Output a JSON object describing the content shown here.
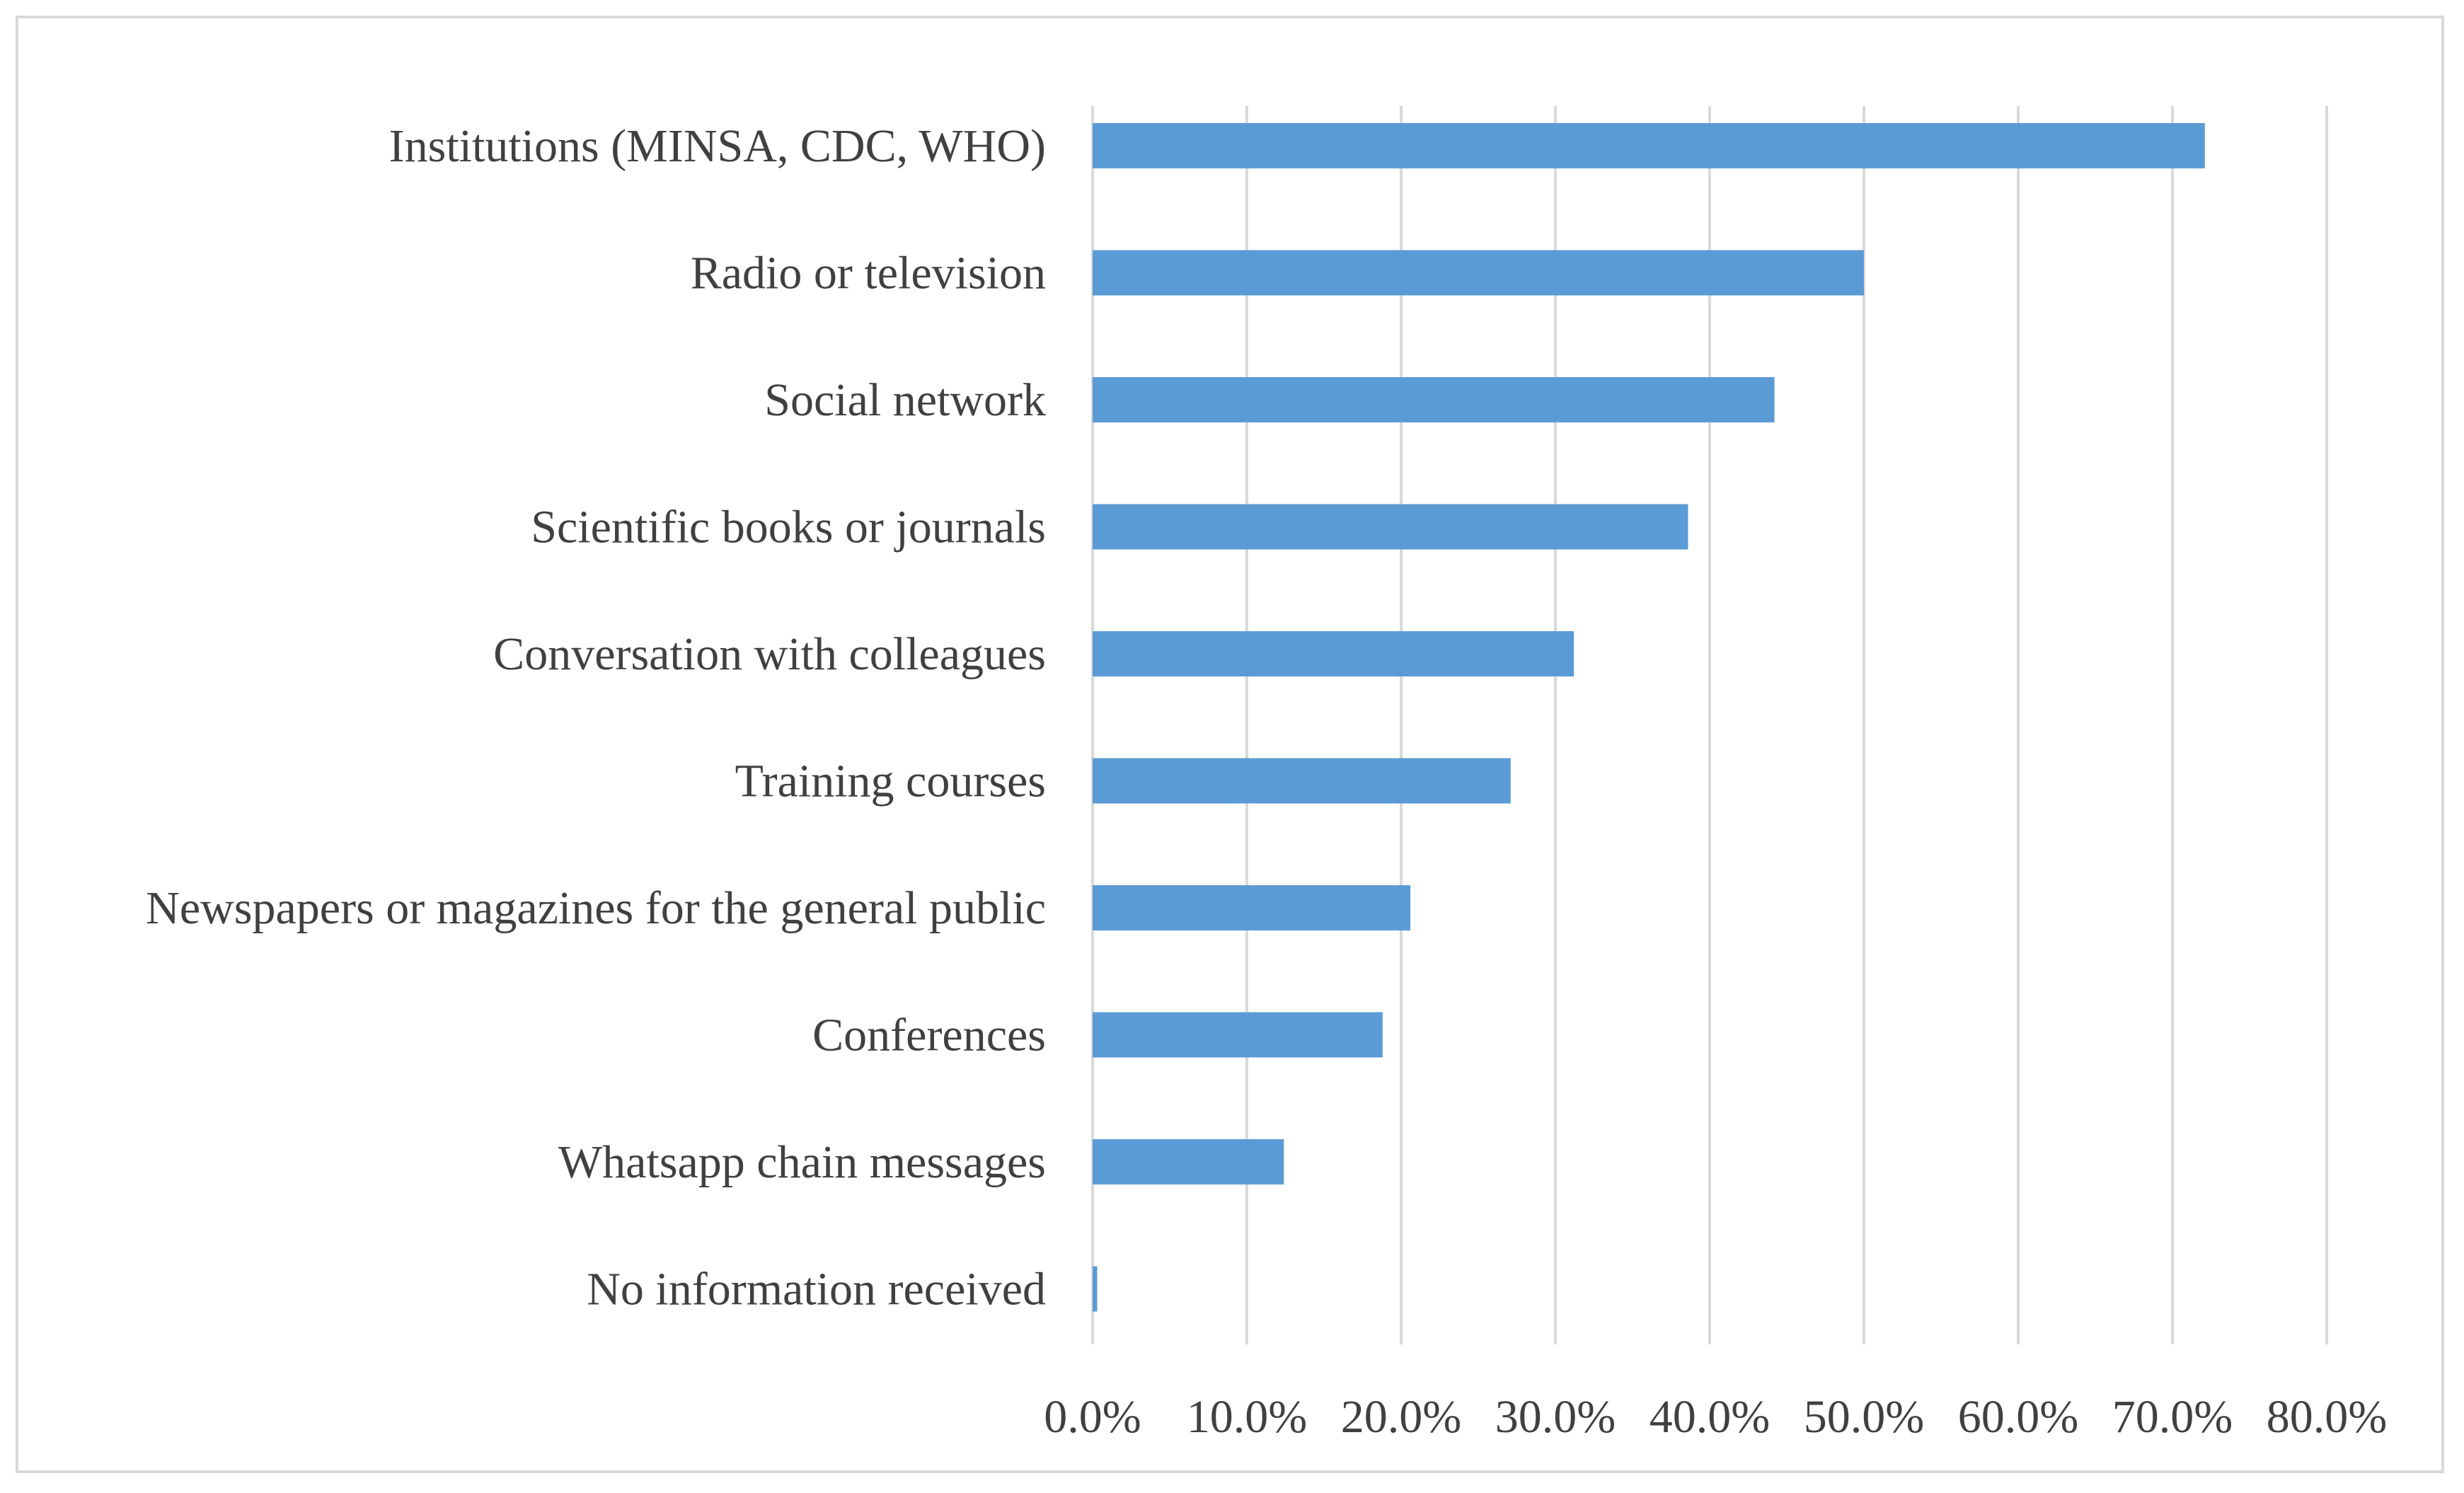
{
  "chart_data": {
    "type": "bar",
    "orientation": "horizontal",
    "title": "",
    "xlabel": "",
    "ylabel": "",
    "categories": [
      "Institutions (MINSA, CDC, WHO)",
      "Radio or television",
      "Social network",
      "Scientific books or journals",
      "Conversation with colleagues",
      "Training courses",
      "Newspapers or magazines for the general public",
      "Conferences",
      "Whatsapp chain messages",
      "No information received"
    ],
    "values": [
      72.1,
      50.0,
      44.2,
      38.6,
      31.2,
      27.1,
      20.6,
      18.8,
      12.4,
      0.3
    ],
    "xlim": [
      0,
      80
    ],
    "xticks": [
      0,
      10,
      20,
      30,
      40,
      50,
      60,
      70,
      80
    ],
    "xtick_labels": [
      "0.0%",
      "10.0%",
      "20.0%",
      "30.0%",
      "40.0%",
      "50.0%",
      "60.0%",
      "70.0%",
      "80.0%"
    ],
    "grid": "vertical",
    "bar_color": "#5b9bd5",
    "grid_color": "#d9d9d9",
    "text_color": "#404040"
  }
}
